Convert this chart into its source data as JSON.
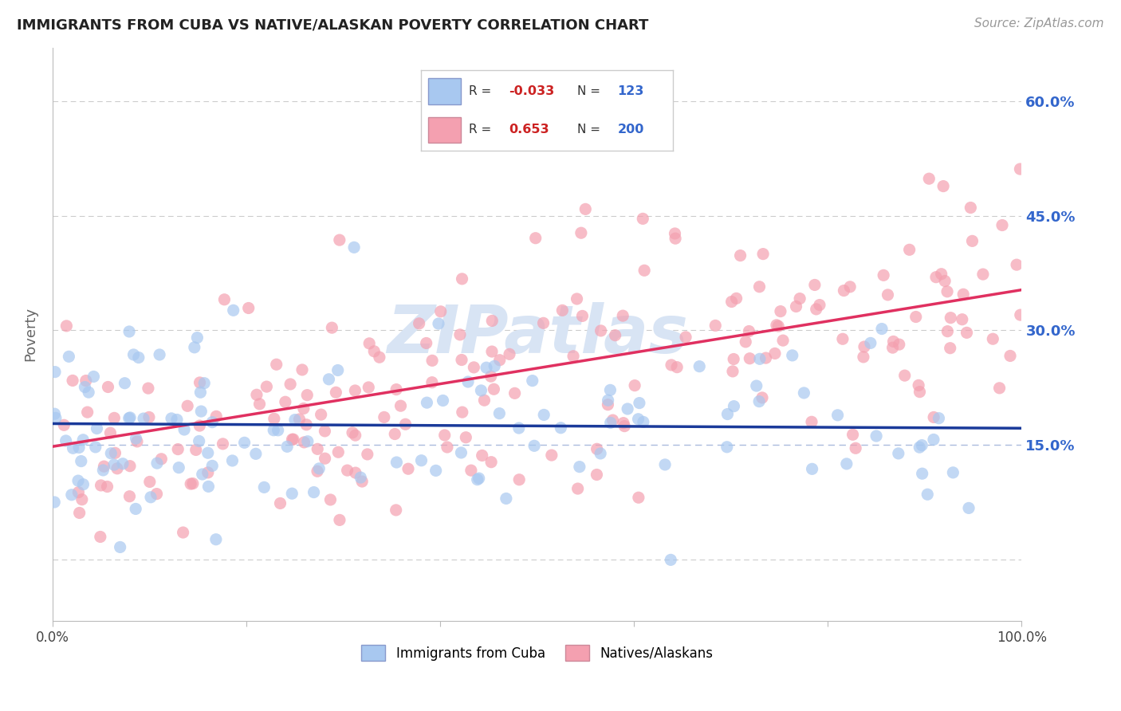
{
  "title": "IMMIGRANTS FROM CUBA VS NATIVE/ALASKAN POVERTY CORRELATION CHART",
  "source": "Source: ZipAtlas.com",
  "ylabel": "Poverty",
  "yticks": [
    0.0,
    0.15,
    0.3,
    0.45,
    0.6
  ],
  "ytick_labels": [
    "",
    "15.0%",
    "30.0%",
    "45.0%",
    "60.0%"
  ],
  "xlim": [
    0.0,
    1.0
  ],
  "ylim": [
    -0.08,
    0.67
  ],
  "legend_R_blue": "-0.033",
  "legend_N_blue": "123",
  "legend_R_pink": "0.653",
  "legend_N_pink": "200",
  "blue_color": "#a8c8f0",
  "pink_color": "#f4a0b0",
  "line_blue": "#1a3a9a",
  "line_pink": "#e03060",
  "watermark": "ZIPatlas",
  "watermark_color": "#d8e4f4",
  "background_color": "#ffffff",
  "grid_color": "#cccccc",
  "grid_color_15": "#aabbdd",
  "seed_blue": 12,
  "seed_pink": 77,
  "blue_N": 123,
  "pink_N": 200,
  "blue_intercept": 0.178,
  "blue_slope": -0.006,
  "pink_intercept": 0.148,
  "pink_slope": 0.205
}
